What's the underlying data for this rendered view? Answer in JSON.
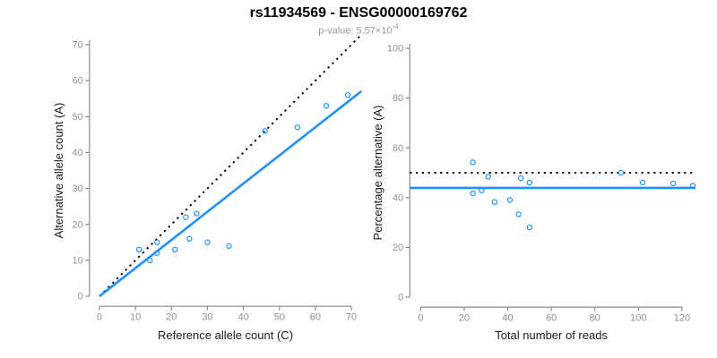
{
  "header": {
    "title": "rs11934569 - ENSG00000169762",
    "subtitle_prefix": "p-value: 5.57×10",
    "subtitle_exponent": "-4"
  },
  "colors": {
    "accent_blue": "#1E90FF",
    "reference_black": "#000000",
    "axis_gray": "#8A8A8A",
    "tick_label_gray": "#909090",
    "axis_title_dark": "#1A1A1A",
    "subtitle_gray": "#999999"
  },
  "chart_data": [
    {
      "type": "scatter",
      "name": "allele-count-scatter",
      "xlabel": "Reference allele count (C)",
      "ylabel": "Alternative allele count (A)",
      "xlim": [
        0,
        70
      ],
      "ylim": [
        0,
        70
      ],
      "xticks": [
        0,
        10,
        20,
        30,
        40,
        50,
        60,
        70
      ],
      "yticks": [
        0,
        10,
        20,
        30,
        40,
        50,
        60,
        70
      ],
      "grid": false,
      "marker": "open-circle",
      "points": [
        [
          11,
          13
        ],
        [
          14,
          10
        ],
        [
          16,
          12
        ],
        [
          16,
          15
        ],
        [
          21,
          13
        ],
        [
          24,
          22
        ],
        [
          25,
          16
        ],
        [
          27,
          23
        ],
        [
          30,
          15
        ],
        [
          36,
          14
        ],
        [
          46,
          46
        ],
        [
          55,
          47
        ],
        [
          63,
          53
        ],
        [
          69,
          56
        ]
      ],
      "lines": [
        {
          "name": "identity-line",
          "from": [
            0,
            0
          ],
          "slope": 1,
          "style": "dotted",
          "color": "#000000"
        },
        {
          "name": "fit-line",
          "from": [
            0,
            0
          ],
          "slope": 0.784,
          "style": "solid",
          "color": "#1E90FF"
        }
      ]
    },
    {
      "type": "scatter",
      "name": "percentage-reads-scatter",
      "xlabel": "Total number of reads",
      "ylabel": "Percentage alternative (A)",
      "xlim": [
        0,
        125
      ],
      "ylim": [
        0,
        100
      ],
      "xticks": [
        0,
        20,
        40,
        60,
        80,
        100,
        120
      ],
      "yticks": [
        0,
        20,
        40,
        60,
        80,
        100
      ],
      "grid": false,
      "marker": "open-circle",
      "points": [
        [
          24,
          54.2
        ],
        [
          24,
          41.7
        ],
        [
          28,
          42.9
        ],
        [
          31,
          48.4
        ],
        [
          34,
          38.2
        ],
        [
          41,
          39.0
        ],
        [
          45,
          33.3
        ],
        [
          46,
          47.8
        ],
        [
          50,
          46.0
        ],
        [
          50,
          28.0
        ],
        [
          92,
          50.0
        ],
        [
          102,
          46.1
        ],
        [
          116,
          45.7
        ],
        [
          125,
          44.8
        ]
      ],
      "hlines": [
        {
          "name": "expected-percentage-line",
          "y": 50,
          "style": "dotted",
          "color": "#000000"
        },
        {
          "name": "mean-percentage-line",
          "y": 43.9,
          "style": "solid",
          "color": "#1E90FF"
        }
      ]
    }
  ]
}
